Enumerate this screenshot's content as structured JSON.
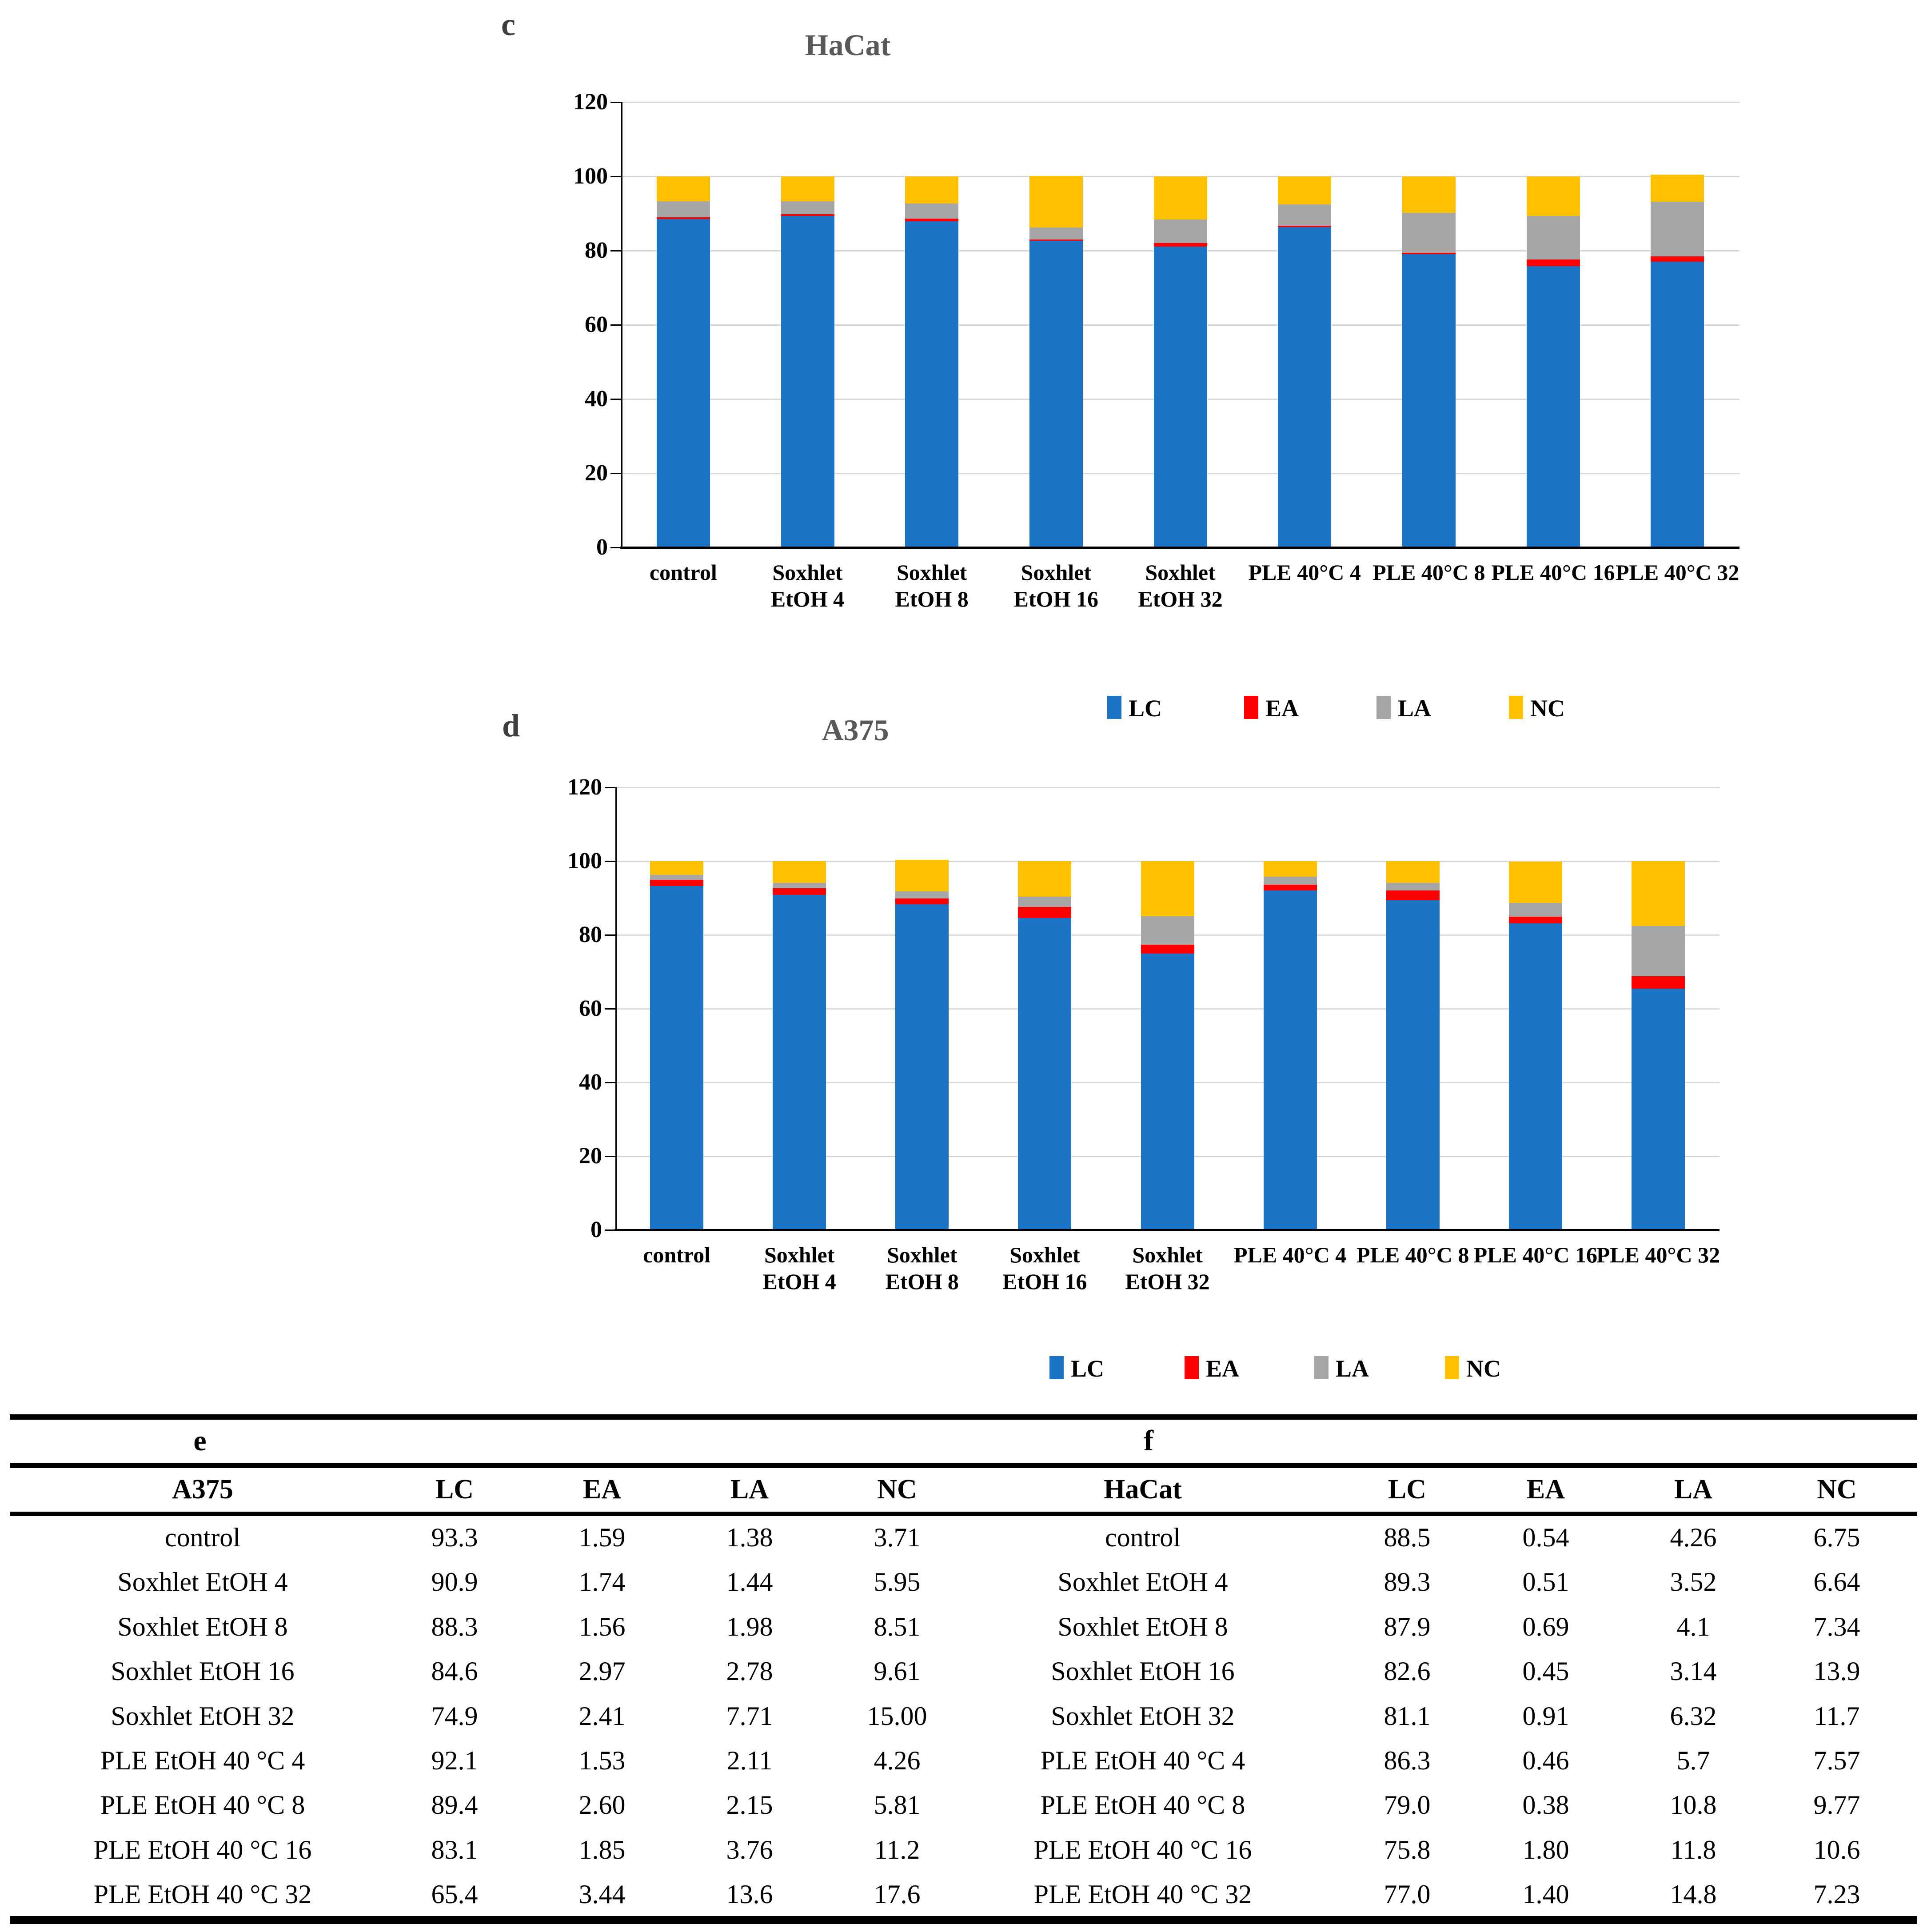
{
  "colors": {
    "LC": "#1b74c5",
    "EA": "#ff0000",
    "LA": "#a6a6a6",
    "NC": "#ffc000",
    "gridline": "#d9d9d9",
    "axis": "#000000",
    "chart_title": "#595959"
  },
  "chart_data": [
    {
      "id": "c",
      "panel_label": "c",
      "type": "bar",
      "stacked": true,
      "title": "HaCat",
      "grid": true,
      "legend_position": "bottom",
      "ylim": [
        0,
        120
      ],
      "yticks": [
        0,
        20,
        40,
        60,
        80,
        100,
        120
      ],
      "categories": [
        "control",
        "Soxhlet\nEtOH 4",
        "Soxhlet\nEtOH 8",
        "Soxhlet\nEtOH 16",
        "Soxhlet\nEtOH 32",
        "PLE 40°C 4",
        "PLE 40°C 8",
        "PLE 40°C 16",
        "PLE 40°C 32"
      ],
      "legend": [
        "LC",
        "EA",
        "LA",
        "NC"
      ],
      "series": [
        {
          "name": "LC",
          "color": "#1b74c5",
          "values": [
            88.5,
            89.3,
            87.9,
            82.6,
            81.1,
            86.3,
            79.0,
            75.8,
            77.0
          ]
        },
        {
          "name": "EA",
          "color": "#ff0000",
          "values": [
            0.54,
            0.51,
            0.69,
            0.45,
            0.91,
            0.46,
            0.38,
            1.8,
            1.4
          ]
        },
        {
          "name": "LA",
          "color": "#a6a6a6",
          "values": [
            4.26,
            3.52,
            4.1,
            3.14,
            6.32,
            5.7,
            10.8,
            11.8,
            14.8
          ]
        },
        {
          "name": "NC",
          "color": "#ffc000",
          "values": [
            6.75,
            6.64,
            7.34,
            13.9,
            11.7,
            7.57,
            9.77,
            10.6,
            7.23
          ]
        }
      ]
    },
    {
      "id": "d",
      "panel_label": "d",
      "type": "bar",
      "stacked": true,
      "title": "A375",
      "grid": true,
      "legend_position": "bottom",
      "ylim": [
        0,
        120
      ],
      "yticks": [
        0,
        20,
        40,
        60,
        80,
        100,
        120
      ],
      "categories": [
        "control",
        "Soxhlet\nEtOH 4",
        "Soxhlet\nEtOH 8",
        "Soxhlet\nEtOH 16",
        "Soxhlet\nEtOH 32",
        "PLE 40°C 4",
        "PLE 40°C 8",
        "PLE 40°C 16",
        "PLE 40°C 32"
      ],
      "legend": [
        "LC",
        "EA",
        "LA",
        "NC"
      ],
      "series": [
        {
          "name": "LC",
          "color": "#1b74c5",
          "values": [
            93.3,
            90.9,
            88.3,
            84.6,
            74.9,
            92.1,
            89.4,
            83.1,
            65.4
          ]
        },
        {
          "name": "EA",
          "color": "#ff0000",
          "values": [
            1.59,
            1.74,
            1.56,
            2.97,
            2.41,
            1.53,
            2.6,
            1.85,
            3.44
          ]
        },
        {
          "name": "LA",
          "color": "#a6a6a6",
          "values": [
            1.38,
            1.44,
            1.98,
            2.78,
            7.71,
            2.11,
            2.15,
            3.76,
            13.6
          ]
        },
        {
          "name": "NC",
          "color": "#ffc000",
          "values": [
            3.71,
            5.95,
            8.51,
            9.61,
            15.0,
            4.26,
            5.81,
            11.2,
            17.6
          ]
        }
      ]
    }
  ],
  "table": {
    "sections": [
      {
        "panel": "e",
        "header": [
          "A375",
          "LC",
          "EA",
          "LA",
          "NC"
        ],
        "rows": [
          [
            "control",
            "93.3",
            "1.59",
            "1.38",
            "3.71"
          ],
          [
            "Soxhlet EtOH 4",
            "90.9",
            "1.74",
            "1.44",
            "5.95"
          ],
          [
            "Soxhlet EtOH 8",
            "88.3",
            "1.56",
            "1.98",
            "8.51"
          ],
          [
            "Soxhlet EtOH 16",
            "84.6",
            "2.97",
            "2.78",
            "9.61"
          ],
          [
            "Soxhlet EtOH 32",
            "74.9",
            "2.41",
            "7.71",
            "15.00"
          ],
          [
            "PLE EtOH 40 °C 4",
            "92.1",
            "1.53",
            "2.11",
            "4.26"
          ],
          [
            "PLE EtOH 40 °C 8",
            "89.4",
            "2.60",
            "2.15",
            "5.81"
          ],
          [
            "PLE EtOH 40 °C 16",
            "83.1",
            "1.85",
            "3.76",
            "11.2"
          ],
          [
            "PLE EtOH 40 °C 32",
            "65.4",
            "3.44",
            "13.6",
            "17.6"
          ]
        ]
      },
      {
        "panel": "f",
        "header": [
          "HaCat",
          "LC",
          "EA",
          "LA",
          "NC"
        ],
        "rows": [
          [
            "control",
            "88.5",
            "0.54",
            "4.26",
            "6.75"
          ],
          [
            "Soxhlet EtOH 4",
            "89.3",
            "0.51",
            "3.52",
            "6.64"
          ],
          [
            "Soxhlet EtOH 8",
            "87.9",
            "0.69",
            "4.1",
            "7.34"
          ],
          [
            "Soxhlet EtOH 16",
            "82.6",
            "0.45",
            "3.14",
            "13.9"
          ],
          [
            "Soxhlet EtOH 32",
            "81.1",
            "0.91",
            "6.32",
            "11.7"
          ],
          [
            "PLE EtOH 40 °C 4",
            "86.3",
            "0.46",
            "5.7",
            "7.57"
          ],
          [
            "PLE EtOH 40 °C 8",
            "79.0",
            "0.38",
            "10.8",
            "9.77"
          ],
          [
            "PLE EtOH 40 °C 16",
            "75.8",
            "1.80",
            "11.8",
            "10.6"
          ],
          [
            "PLE EtOH 40 °C 32",
            "77.0",
            "1.40",
            "14.8",
            "7.23"
          ]
        ]
      }
    ]
  }
}
